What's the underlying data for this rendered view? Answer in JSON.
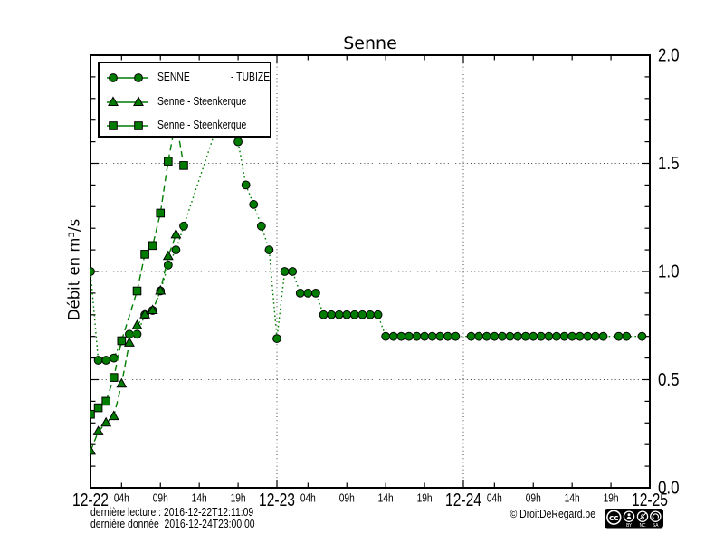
{
  "title": "Senne",
  "axes": {
    "y_label": "Débit en m³/s",
    "y_tick_labels": [
      "0.0",
      "0.5",
      "1.0",
      "1.5",
      "2.0"
    ],
    "y_ticks": [
      0.0,
      0.5,
      1.0,
      1.5,
      2.0
    ],
    "y_minor_step": 0.1,
    "ylim": [
      0.0,
      2.0
    ],
    "x_day_labels": [
      "12-22",
      "12-23",
      "12-24",
      "12-25"
    ],
    "x_day_hours": [
      0,
      24,
      48,
      72
    ],
    "x_hour_labels": [
      "04h",
      "09h",
      "14h",
      "19h"
    ],
    "x_hour_offsets": [
      4,
      9,
      14,
      19
    ],
    "xlim_hours": [
      0,
      72
    ],
    "grid_h_values": [
      0.5,
      1.0,
      1.5
    ],
    "grid_v_hours": [
      24,
      48
    ]
  },
  "chart_data": {
    "type": "line",
    "title": "Senne",
    "ylabel": "Débit en m³/s",
    "x_unit": "hours since 2016-12-22T00:00",
    "ylim": [
      0.0,
      2.0
    ],
    "series": [
      {
        "name": "SENNE - TUBIZE",
        "marker": "circle",
        "line": "dotted",
        "points": [
          [
            0,
            1.0
          ],
          [
            1,
            0.59
          ],
          [
            2,
            0.59
          ],
          [
            3,
            0.6
          ],
          [
            4,
            0.68
          ],
          [
            5,
            0.71
          ],
          [
            6,
            0.71
          ],
          [
            7,
            0.8
          ],
          [
            8,
            0.82
          ],
          [
            9,
            0.91
          ],
          [
            10,
            1.03
          ],
          [
            11,
            1.1
          ],
          [
            12,
            1.21
          ],
          [
            17,
            1.75
          ],
          [
            18,
            1.79
          ],
          [
            19,
            1.6
          ],
          [
            20,
            1.4
          ],
          [
            21,
            1.31
          ],
          [
            22,
            1.21
          ],
          [
            23,
            1.1
          ],
          [
            24,
            0.69
          ],
          [
            25,
            1.0
          ],
          [
            26,
            1.0
          ],
          [
            27,
            0.9
          ],
          [
            28,
            0.9
          ],
          [
            29,
            0.9
          ],
          [
            30,
            0.8
          ],
          [
            31,
            0.8
          ],
          [
            32,
            0.8
          ],
          [
            33,
            0.8
          ],
          [
            34,
            0.8
          ],
          [
            35,
            0.8
          ],
          [
            36,
            0.8
          ],
          [
            37,
            0.8
          ],
          [
            38,
            0.7
          ],
          [
            39,
            0.7
          ],
          [
            40,
            0.7
          ],
          [
            41,
            0.7
          ],
          [
            42,
            0.7
          ],
          [
            43,
            0.7
          ],
          [
            44,
            0.7
          ],
          [
            45,
            0.7
          ],
          [
            46,
            0.7
          ],
          [
            47,
            0.7
          ],
          [
            49,
            0.7
          ],
          [
            50,
            0.7
          ],
          [
            51,
            0.7
          ],
          [
            52,
            0.7
          ],
          [
            53,
            0.7
          ],
          [
            54,
            0.7
          ],
          [
            55,
            0.7
          ],
          [
            56,
            0.7
          ],
          [
            57,
            0.7
          ],
          [
            58,
            0.7
          ],
          [
            59,
            0.7
          ],
          [
            60,
            0.7
          ],
          [
            61,
            0.7
          ],
          [
            62,
            0.7
          ],
          [
            63,
            0.7
          ],
          [
            64,
            0.7
          ],
          [
            65,
            0.7
          ],
          [
            66,
            0.7
          ],
          [
            68,
            0.7
          ],
          [
            69,
            0.7
          ],
          [
            71,
            0.7
          ]
        ]
      },
      {
        "name": "Senne - Steenkerque",
        "marker": "triangle",
        "line": "dashed",
        "points": [
          [
            0,
            0.17
          ],
          [
            1,
            0.26
          ],
          [
            2,
            0.3
          ],
          [
            3,
            0.33
          ],
          [
            4,
            0.48
          ],
          [
            5,
            0.67
          ],
          [
            6,
            0.75
          ],
          [
            7,
            0.8
          ],
          [
            8,
            0.82
          ],
          [
            9,
            0.91
          ],
          [
            10,
            1.07
          ],
          [
            11,
            1.17
          ]
        ]
      },
      {
        "name": "Senne - Steenkerque",
        "marker": "square",
        "line": "dashed",
        "points": [
          [
            0,
            0.34
          ],
          [
            1,
            0.37
          ],
          [
            2,
            0.4
          ],
          [
            3,
            0.51
          ],
          [
            4,
            0.68
          ],
          [
            6,
            0.91
          ],
          [
            7,
            1.08
          ],
          [
            8,
            1.12
          ],
          [
            9,
            1.27
          ],
          [
            10,
            1.51
          ],
          [
            11,
            1.7
          ],
          [
            12,
            1.49
          ]
        ]
      }
    ]
  },
  "legend": {
    "entries": [
      {
        "label": "SENNE",
        "label2": "- TUBIZE"
      },
      {
        "label": "Senne - Steenkerque",
        "label2": ""
      },
      {
        "label": "Senne - Steenkerque",
        "label2": ""
      }
    ]
  },
  "footer": {
    "line1": "dernière lecture : 2016-12-22T12:11:09",
    "line2": "dernière donnée  2016-12-24T23:00:00",
    "copyright": "© DroitDeRegard.be"
  },
  "cc_badge": {
    "cc_text": "cc",
    "nc_symbol": "$",
    "labels": [
      "BY",
      "NC",
      "SA"
    ]
  },
  "colors": {
    "series": "#007c00",
    "frame": "#000000",
    "grid": "#444444"
  }
}
